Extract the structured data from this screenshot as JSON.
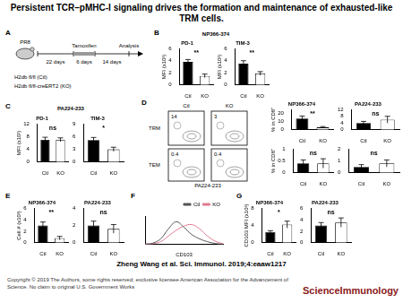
{
  "title": "Persistent TCR–pMHC-I signaling drives the formation and maintenance of exhausted-like TRM cells.",
  "citation": "Zheng Wang et al. Sci. Immunol. 2019;4:eaaw1217",
  "copyright": "Copyright © 2019 The Authors, some rights reserved; exclusive licensee American Association for the Advancement of Science. No claim to original U.S. Government Works",
  "journal": "ScienceImmunology",
  "panel_labels": [
    "A",
    "B",
    "C",
    "D",
    "E",
    "F",
    "G"
  ],
  "group_headers": {
    "B": "NP366-374",
    "C": "PA224-233"
  },
  "protocol": {
    "infection": "PR8",
    "treatment": "Tamoxifen",
    "endpoint": "Analysis",
    "intervals": [
      "22 days",
      "6 days",
      "14 days"
    ],
    "genotypes": [
      "H2db fl/fl (Ctl)",
      "H2db fl/fl-creERT2 (KO)"
    ]
  },
  "flow": {
    "columns": [
      "Ctl",
      "KO"
    ],
    "rows": [
      "TRM",
      "TEM"
    ],
    "values": [
      [
        14,
        3
      ],
      [
        0.4,
        0.4
      ]
    ],
    "xlabel": "PA224-233"
  },
  "chart_data": [
    {
      "type": "bar",
      "title": "PD-1",
      "ylabel": "MFI (x10³)",
      "categories": [
        "Ctl",
        "KO"
      ],
      "values": [
        3.8,
        1.5
      ],
      "errors": [
        0.4,
        0.3
      ],
      "colors": [
        "#000000",
        "#ffffff"
      ],
      "ylim": [
        0,
        6
      ],
      "yticks": [
        0,
        2,
        4,
        6
      ],
      "annotation": "**"
    },
    {
      "type": "bar",
      "title": "TIM-3",
      "ylabel": "MFI (x10³)",
      "categories": [
        "Ctl",
        "KO"
      ],
      "values": [
        3.5,
        1.9
      ],
      "errors": [
        0.5,
        0.3
      ],
      "colors": [
        "#000000",
        "#ffffff"
      ],
      "ylim": [
        0,
        6
      ],
      "yticks": [
        0,
        2,
        4,
        6
      ],
      "annotation": "**"
    },
    {
      "type": "bar",
      "title": "PD-1",
      "ylabel": "MFI (x10³)",
      "categories": [
        "Ctl",
        "KO"
      ],
      "values": [
        7,
        7
      ],
      "errors": [
        0.8,
        0.6
      ],
      "colors": [
        "#000000",
        "#ffffff"
      ],
      "ylim": [
        0,
        12
      ],
      "yticks": [
        0,
        4,
        8,
        12
      ],
      "annotation": "ns"
    },
    {
      "type": "bar",
      "title": "TIM-3",
      "categories": [
        "Ctl",
        "KO"
      ],
      "values": [
        5.2,
        3
      ],
      "errors": [
        0.6,
        0.5
      ],
      "colors": [
        "#000000",
        "#ffffff"
      ],
      "ylim": [
        0,
        9
      ],
      "yticks": [
        0,
        3,
        6,
        9
      ],
      "annotation": "*"
    },
    {
      "type": "bar",
      "title": "NP366-374",
      "ylabel": "% in CD8⁺",
      "categories": [
        "Ctl",
        "KO"
      ],
      "values": [
        14,
        3
      ],
      "errors": [
        3,
        1
      ],
      "colors": [
        "#000000",
        "#ffffff"
      ],
      "ylim": [
        0,
        25
      ],
      "yticks": [
        0,
        10,
        20
      ],
      "annotation": "**"
    },
    {
      "type": "bar",
      "title": "PA224-233",
      "categories": [
        "Ctl",
        "KO"
      ],
      "values": [
        4,
        6
      ],
      "errors": [
        1,
        2
      ],
      "colors": [
        "#000000",
        "#ffffff"
      ],
      "ylim": [
        0,
        12
      ],
      "yticks": [
        0,
        4,
        8,
        12
      ],
      "annotation": "ns"
    },
    {
      "type": "bar",
      "ylabel": "% in CD8⁺",
      "categories": [
        "Ctl",
        "KO"
      ],
      "values": [
        0.4,
        0.4
      ],
      "errors": [
        0.15,
        0.2
      ],
      "colors": [
        "#000000",
        "#ffffff"
      ],
      "ylim": [
        0,
        1
      ],
      "yticks": [
        0,
        0.5,
        1
      ],
      "annotation": "ns"
    },
    {
      "type": "bar",
      "categories": [
        "Ctl",
        "KO"
      ],
      "values": [
        0.5,
        0.8
      ],
      "errors": [
        0.2,
        0.3
      ],
      "colors": [
        "#000000",
        "#ffffff"
      ],
      "ylim": [
        0,
        2
      ],
      "yticks": [
        0,
        1,
        2
      ],
      "annotation": "ns"
    },
    {
      "type": "bar",
      "title": "NP366-374",
      "ylabel": "Cell # (x10³)",
      "categories": [
        "Ctl",
        "KO"
      ],
      "values": [
        3,
        0.8
      ],
      "errors": [
        0.6,
        0.3
      ],
      "colors": [
        "#000000",
        "#ffffff"
      ],
      "ylim": [
        0,
        6
      ],
      "yticks": [
        0,
        2,
        4,
        6
      ],
      "annotation": "**"
    },
    {
      "type": "bar",
      "title": "PA224-233",
      "categories": [
        "Ctl",
        "KO"
      ],
      "values": [
        2,
        1.6
      ],
      "errors": [
        0.5,
        0.5
      ],
      "colors": [
        "#000000",
        "#ffffff"
      ],
      "ylim": [
        0,
        4
      ],
      "yticks": [
        0,
        2,
        4
      ],
      "annotation": "ns"
    },
    {
      "type": "line",
      "xlabel": "CD103",
      "x": [
        0,
        1,
        2,
        3,
        4,
        5,
        6,
        7,
        8,
        9,
        10
      ],
      "xlim": [
        0,
        10
      ],
      "ylim": [
        0,
        100
      ],
      "tick_labels": false,
      "legend": "upper right",
      "series": [
        {
          "name": "Ctl",
          "color": "#555555",
          "values": [
            2,
            5,
            20,
            55,
            80,
            60,
            35,
            20,
            10,
            4,
            1
          ]
        },
        {
          "name": "KO",
          "color": "#e07b91",
          "values": [
            1,
            3,
            10,
            30,
            50,
            65,
            70,
            55,
            30,
            12,
            3
          ]
        }
      ]
    },
    {
      "type": "bar",
      "title": "NP366-374",
      "ylabel": "CD103 MFI (x10³)",
      "categories": [
        "Ctl",
        "KO"
      ],
      "values": [
        2.5,
        4.2
      ],
      "errors": [
        0.3,
        0.8
      ],
      "colors": [
        "#000000",
        "#ffffff"
      ],
      "ylim": [
        0,
        8
      ],
      "yticks": [
        0,
        4,
        8
      ],
      "annotation": "*"
    },
    {
      "type": "bar",
      "title": "PA224-233",
      "categories": [
        "Ctl",
        "KO"
      ],
      "values": [
        3,
        3.5
      ],
      "errors": [
        0.5,
        0.8
      ],
      "colors": [
        "#000000",
        "#ffffff"
      ],
      "ylim": [
        0,
        6
      ],
      "yticks": [
        0,
        2,
        4,
        6
      ],
      "annotation": "ns"
    }
  ]
}
